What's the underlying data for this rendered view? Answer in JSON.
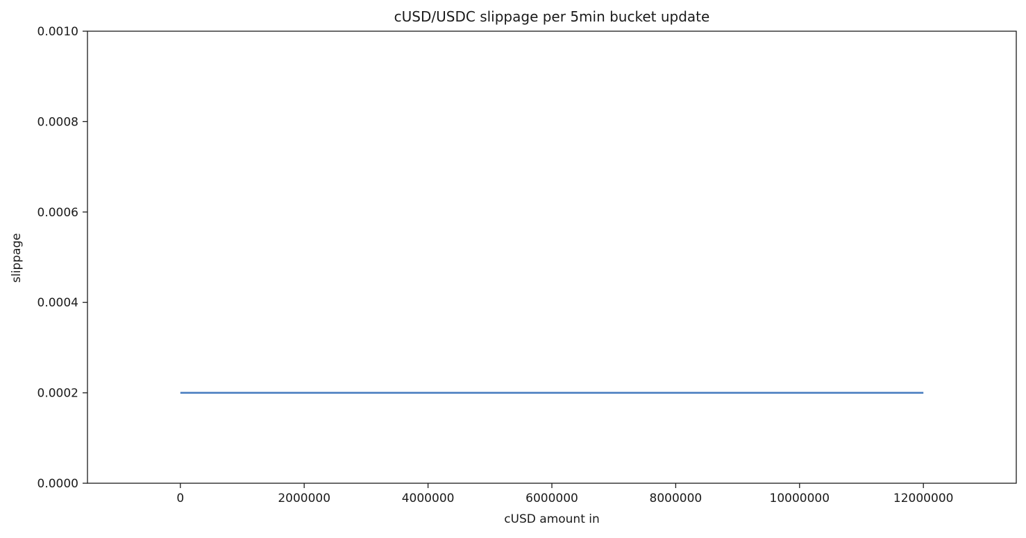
{
  "chart_data": {
    "type": "line",
    "title": "cUSD/USDC slippage per 5min bucket update",
    "xlabel": "cUSD amount in",
    "ylabel": "slippage",
    "xlim": [
      -1500000,
      13500000
    ],
    "ylim": [
      0.0,
      0.001
    ],
    "xticks": [
      0,
      2000000,
      4000000,
      6000000,
      8000000,
      10000000,
      12000000
    ],
    "xtick_labels": [
      "0",
      "2000000",
      "4000000",
      "6000000",
      "8000000",
      "10000000",
      "12000000"
    ],
    "yticks": [
      0.0,
      0.0002,
      0.0004,
      0.0006,
      0.0008,
      0.001
    ],
    "ytick_labels": [
      "0.0000",
      "0.0002",
      "0.0004",
      "0.0006",
      "0.0008",
      "0.0010"
    ],
    "grid": false,
    "series": [
      {
        "color": "#4a7fc1",
        "x": [
          0,
          12000000
        ],
        "y": [
          0.0002,
          0.0002
        ]
      }
    ]
  }
}
